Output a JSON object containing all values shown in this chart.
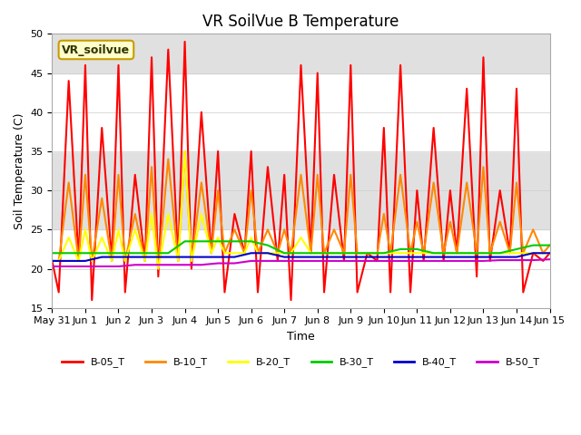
{
  "title": "VR SoilVue B Temperature",
  "xlabel": "Time",
  "ylabel": "Soil Temperature (C)",
  "ylim": [
    15,
    50
  ],
  "xlim": [
    0,
    15
  ],
  "x_tick_labels": [
    "May 31",
    "Jun 1",
    "Jun 2",
    "Jun 3",
    "Jun 4",
    "Jun 5",
    "Jun 6",
    "Jun 7",
    "Jun 8",
    "Jun 9",
    "Jun 10",
    "Jun 11",
    "Jun 12",
    "Jun 13",
    "Jun 14",
    "Jun 15"
  ],
  "watermark_text": "VR_soilvue",
  "watermark_bg": "#ffffcc",
  "watermark_border": "#cc9900",
  "series": [
    {
      "name": "B-05_T",
      "color": "#ff0000",
      "linewidth": 1.5,
      "x": [
        0,
        0.2,
        0.5,
        0.8,
        1.0,
        1.2,
        1.5,
        1.8,
        2.0,
        2.2,
        2.5,
        2.8,
        3.0,
        3.2,
        3.5,
        3.8,
        4.0,
        4.2,
        4.5,
        4.8,
        5.0,
        5.2,
        5.5,
        5.8,
        6.0,
        6.2,
        6.5,
        6.8,
        7.0,
        7.2,
        7.5,
        7.8,
        8.0,
        8.2,
        8.5,
        8.8,
        9.0,
        9.2,
        9.5,
        9.8,
        10.0,
        10.2,
        10.5,
        10.8,
        11.0,
        11.2,
        11.5,
        11.8,
        12.0,
        12.2,
        12.5,
        12.8,
        13.0,
        13.2,
        13.5,
        13.8,
        14.0,
        14.2,
        14.5,
        14.8,
        15.0
      ],
      "y": [
        21,
        17,
        44,
        21,
        46,
        16,
        38,
        21,
        46,
        17,
        32,
        21,
        47,
        19,
        48,
        21,
        49,
        20,
        40,
        22,
        35,
        17,
        27,
        22,
        35,
        17,
        33,
        21,
        32,
        16,
        46,
        22,
        45,
        17,
        32,
        21,
        46,
        17,
        22,
        21,
        38,
        17,
        46,
        17,
        30,
        21,
        38,
        21,
        30,
        22,
        43,
        19,
        47,
        21,
        30,
        22,
        43,
        17,
        22,
        21,
        22
      ]
    },
    {
      "name": "B-10_T",
      "color": "#ff8800",
      "linewidth": 1.5,
      "x": [
        0,
        0.2,
        0.5,
        0.8,
        1.0,
        1.2,
        1.5,
        1.8,
        2.0,
        2.2,
        2.5,
        2.8,
        3.0,
        3.2,
        3.5,
        3.8,
        4.0,
        4.2,
        4.5,
        4.8,
        5.0,
        5.2,
        5.5,
        5.8,
        6.0,
        6.2,
        6.5,
        6.8,
        7.0,
        7.2,
        7.5,
        7.8,
        8.0,
        8.2,
        8.5,
        8.8,
        9.0,
        9.2,
        9.5,
        9.8,
        10.0,
        10.2,
        10.5,
        10.8,
        11.0,
        11.2,
        11.5,
        11.8,
        12.0,
        12.2,
        12.5,
        12.8,
        13.0,
        13.2,
        13.5,
        13.8,
        14.0,
        14.2,
        14.5,
        14.8,
        15.0
      ],
      "y": [
        21,
        21,
        31,
        21,
        32,
        21,
        29,
        21,
        32,
        21,
        27,
        21,
        33,
        20,
        34,
        21,
        35,
        21,
        31,
        22,
        30,
        22,
        25,
        22,
        30,
        22,
        25,
        22,
        25,
        22,
        32,
        22,
        32,
        22,
        25,
        22,
        32,
        22,
        22,
        22,
        27,
        22,
        32,
        22,
        26,
        22,
        31,
        22,
        26,
        22,
        31,
        22,
        33,
        22,
        26,
        22,
        31,
        22,
        25,
        22,
        23
      ]
    },
    {
      "name": "B-20_T",
      "color": "#ffff00",
      "linewidth": 1.5,
      "x": [
        0,
        0.2,
        0.5,
        0.8,
        1.0,
        1.2,
        1.5,
        1.8,
        2.0,
        2.2,
        2.5,
        2.8,
        3.0,
        3.2,
        3.5,
        3.8,
        4.0,
        4.2,
        4.5,
        4.8,
        5.0,
        5.2,
        5.5,
        5.8,
        6.0,
        6.2,
        6.5,
        6.8,
        7.0,
        7.2,
        7.5,
        7.8,
        8.0,
        8.2,
        8.5,
        8.8,
        9.0,
        9.2,
        9.5,
        9.8,
        10.0,
        10.2,
        10.5,
        10.8,
        11.0,
        11.2,
        11.5,
        11.8,
        12.0,
        12.2,
        12.5,
        12.8,
        13.0,
        13.2,
        13.5,
        13.8,
        14.0,
        14.2,
        14.5,
        14.8,
        15.0
      ],
      "y": [
        21,
        21,
        24,
        21,
        25,
        21,
        24,
        21,
        25,
        21,
        25,
        21,
        27,
        20,
        27,
        21,
        35,
        21,
        27,
        22,
        24,
        22,
        22,
        22,
        24,
        22,
        22,
        22,
        22,
        22,
        24,
        22,
        22,
        22,
        22,
        22,
        22,
        22,
        22,
        22,
        22,
        22,
        22,
        22,
        22,
        22,
        22,
        22,
        22,
        22,
        22,
        22,
        22,
        22,
        22,
        22,
        22,
        22,
        22,
        22,
        22
      ]
    },
    {
      "name": "B-30_T",
      "color": "#00cc00",
      "linewidth": 1.5,
      "x": [
        0,
        0.5,
        1.0,
        1.5,
        2.0,
        2.5,
        3.0,
        3.5,
        4.0,
        4.5,
        5.0,
        5.5,
        6.0,
        6.5,
        7.0,
        7.5,
        8.0,
        8.5,
        9.0,
        9.5,
        10.0,
        10.5,
        11.0,
        11.5,
        12.0,
        12.5,
        13.0,
        13.5,
        14.0,
        14.5,
        15.0
      ],
      "y": [
        22,
        22,
        22,
        22,
        22,
        22,
        22,
        22,
        23.5,
        23.5,
        23.5,
        23.5,
        23.5,
        23,
        22,
        22,
        22,
        22,
        22,
        22,
        22,
        22.5,
        22.5,
        22,
        22,
        22,
        22,
        22,
        22.5,
        23,
        23
      ]
    },
    {
      "name": "B-40_T",
      "color": "#0000cc",
      "linewidth": 1.5,
      "x": [
        0,
        0.5,
        1.0,
        1.5,
        2.0,
        2.5,
        3.0,
        3.5,
        4.0,
        4.5,
        5.0,
        5.5,
        6.0,
        6.5,
        7.0,
        7.5,
        8.0,
        8.5,
        9.0,
        9.5,
        10.0,
        10.5,
        11.0,
        11.5,
        12.0,
        12.5,
        13.0,
        13.5,
        14.0,
        14.5,
        15.0
      ],
      "y": [
        21,
        21,
        21,
        21.5,
        21.5,
        21.5,
        21.5,
        21.5,
        21.5,
        21.5,
        21.5,
        21.5,
        22,
        22,
        21.5,
        21.5,
        21.5,
        21.5,
        21.5,
        21.5,
        21.5,
        21.5,
        21.5,
        21.5,
        21.5,
        21.5,
        21.5,
        21.5,
        21.5,
        22,
        22
      ]
    },
    {
      "name": "B-50_T",
      "color": "#cc00cc",
      "linewidth": 1.5,
      "x": [
        0,
        0.5,
        1.0,
        1.5,
        2.0,
        2.5,
        3.0,
        3.5,
        4.0,
        4.5,
        5.0,
        5.5,
        6.0,
        6.5,
        7.0,
        7.5,
        8.0,
        8.5,
        9.0,
        9.5,
        10.0,
        10.5,
        11.0,
        11.5,
        12.0,
        12.5,
        13.0,
        13.5,
        14.0,
        14.5,
        15.0
      ],
      "y": [
        20.3,
        20.3,
        20.3,
        20.3,
        20.3,
        20.5,
        20.5,
        20.5,
        20.5,
        20.5,
        20.7,
        20.7,
        21,
        21,
        21,
        21,
        21,
        21,
        21,
        21,
        21,
        21,
        21,
        21,
        21,
        21,
        21,
        21.1,
        21.1,
        21.1,
        21.2
      ]
    }
  ],
  "legend_entries": [
    {
      "label": "B-05_T",
      "color": "#ff0000"
    },
    {
      "label": "B-10_T",
      "color": "#ff8800"
    },
    {
      "label": "B-20_T",
      "color": "#ffff00"
    },
    {
      "label": "B-30_T",
      "color": "#00cc00"
    },
    {
      "label": "B-40_T",
      "color": "#0000cc"
    },
    {
      "label": "B-50_T",
      "color": "#cc00cc"
    }
  ],
  "band_edges": [
    15,
    25,
    35,
    45,
    50
  ],
  "yticks": [
    15,
    20,
    25,
    30,
    35,
    40,
    45,
    50
  ]
}
